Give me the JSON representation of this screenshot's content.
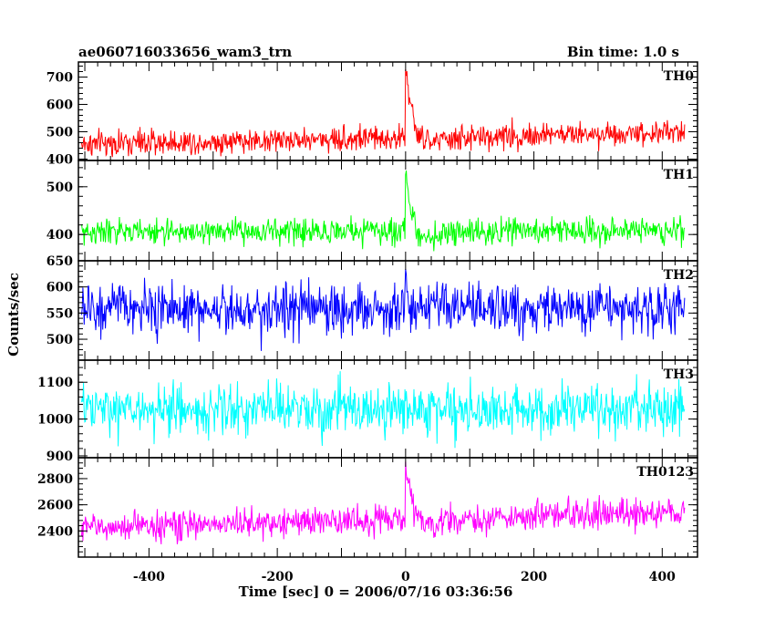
{
  "header": {
    "title": "ae060716033656_wam3_trn",
    "bin_time": "Bin time: 1.0 s"
  },
  "chart_data": {
    "type": "line",
    "title": "ae060716033656_wam3_trn",
    "subtitle": "Bin time: 1.0 s",
    "xlabel": "Time [sec] 0 = 2006/07/16 03:36:56",
    "ylabel": "Counts/sec",
    "xlim": [
      -510,
      455
    ],
    "x_range_data": [
      -505,
      435
    ],
    "bin_time_s": 1.0,
    "x_ticks": [
      -400,
      -200,
      0,
      200,
      400
    ],
    "shared_x": true,
    "panels": [
      {
        "name": "TH0",
        "color": "#ff0000",
        "ylim": [
          395,
          755
        ],
        "y_ticks": [
          400,
          500,
          600,
          700
        ],
        "baseline_start": 455,
        "baseline_end": 500,
        "noise_sigma": 23,
        "peak": 750,
        "peak_time": 0,
        "decay_time_s": 9,
        "dip_after": 25
      },
      {
        "name": "TH1",
        "color": "#00ff00",
        "ylim": [
          345,
          555
        ],
        "y_ticks": [
          400,
          500
        ],
        "baseline_start": 405,
        "baseline_end": 410,
        "noise_sigma": 13,
        "peak": 545,
        "peak_time": 0,
        "decay_time_s": 7,
        "dip_after": 15
      },
      {
        "name": "TH2",
        "color": "#0000ff",
        "ylim": [
          460,
          650
        ],
        "y_ticks": [
          500,
          550,
          600,
          650
        ],
        "baseline_start": 558,
        "baseline_end": 558,
        "noise_sigma": 24,
        "peak": 650,
        "peak_time": 0,
        "decay_time_s": 2,
        "dip_after": 0
      },
      {
        "name": "TH3",
        "color": "#00ffff",
        "ylim": [
          895,
          1160
        ],
        "y_ticks": [
          900,
          1000,
          1100
        ],
        "baseline_start": 1025,
        "baseline_end": 1025,
        "noise_sigma": 34,
        "peak": 1090,
        "peak_time": 0,
        "decay_time_s": 2,
        "dip_after": 0
      },
      {
        "name": "TH0123",
        "color": "#ff00ff",
        "ylim": [
          2200,
          2960
        ],
        "y_ticks": [
          2400,
          2600,
          2800
        ],
        "baseline_start": 2425,
        "baseline_end": 2545,
        "noise_sigma": 55,
        "peak": 2950,
        "peak_time": 0,
        "decay_time_s": 9,
        "dip_after": 60
      }
    ]
  }
}
